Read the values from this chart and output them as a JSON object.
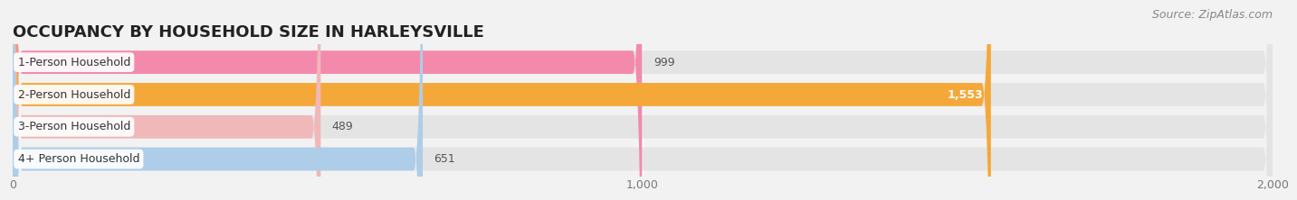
{
  "title": "OCCUPANCY BY HOUSEHOLD SIZE IN HARLEYSVILLE",
  "source": "Source: ZipAtlas.com",
  "categories": [
    "1-Person Household",
    "2-Person Household",
    "3-Person Household",
    "4+ Person Household"
  ],
  "values": [
    999,
    1553,
    489,
    651
  ],
  "bar_colors": [
    "#f48aab",
    "#f5a83a",
    "#f0b8b8",
    "#aecde8"
  ],
  "value_labels": [
    "999",
    "1,553",
    "489",
    "651"
  ],
  "label_inside": [
    false,
    true,
    false,
    false
  ],
  "label_text_colors": [
    "#555555",
    "#ffffff",
    "#555555",
    "#555555"
  ],
  "xlim": [
    0,
    2000
  ],
  "xticks": [
    0,
    1000,
    2000
  ],
  "xtick_labels": [
    "0",
    "1,000",
    "2,000"
  ],
  "bg_color": "#f2f2f2",
  "bar_bg_color": "#e4e4e4",
  "title_fontsize": 13,
  "source_fontsize": 9,
  "label_fontsize": 9,
  "value_fontsize": 9,
  "tick_fontsize": 9,
  "bar_height": 0.72
}
